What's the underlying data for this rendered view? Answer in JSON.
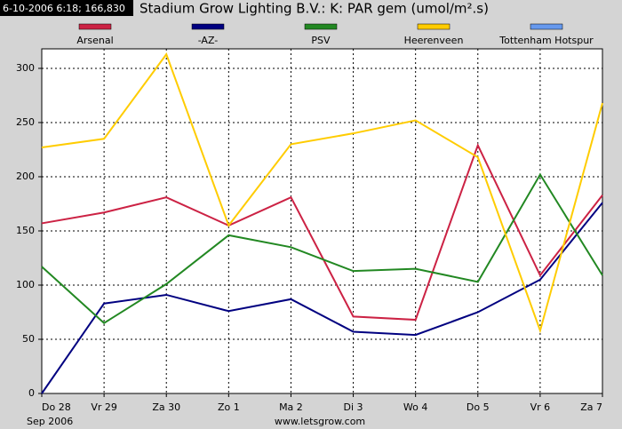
{
  "chart_data": {
    "type": "line",
    "header_text": "6-10-2006 6:18; 166,830",
    "title": "Stadium Grow Lighting B.V.: K: PAR gem (umol/m².s)",
    "categories": [
      "Do 28",
      "Vr 29",
      "Za 30",
      "Zo 1",
      "Ma 2",
      "Di 3",
      "Wo 4",
      "Do 5",
      "Vr 6",
      "Za 7"
    ],
    "series": [
      {
        "name": "Arsenal",
        "color": "#cc2244",
        "values": [
          157,
          167,
          181,
          155,
          181,
          71,
          68,
          229,
          109,
          183
        ]
      },
      {
        "name": "-AZ-",
        "color": "#000080",
        "values": [
          0,
          83,
          91,
          76,
          87,
          57,
          54,
          75,
          105,
          176
        ]
      },
      {
        "name": "PSV",
        "color": "#228822",
        "values": [
          117,
          65,
          101,
          146,
          135,
          113,
          115,
          103,
          202,
          109
        ]
      },
      {
        "name": "Heerenveen",
        "color": "#ffcc00",
        "values": [
          227,
          235,
          313,
          155,
          230,
          240,
          252,
          218,
          58,
          268
        ]
      },
      {
        "name": "Tottenham Hotspur",
        "color": "#6699ee",
        "values": [
          null,
          null,
          null,
          null,
          null,
          null,
          null,
          null,
          null,
          null
        ]
      }
    ],
    "ylim": [
      0,
      318
    ],
    "yticks": [
      0,
      50,
      100,
      150,
      200,
      250,
      300
    ],
    "grid": true,
    "x_sub_label": "Sep 2006",
    "source": "www.letsgrow.com"
  }
}
